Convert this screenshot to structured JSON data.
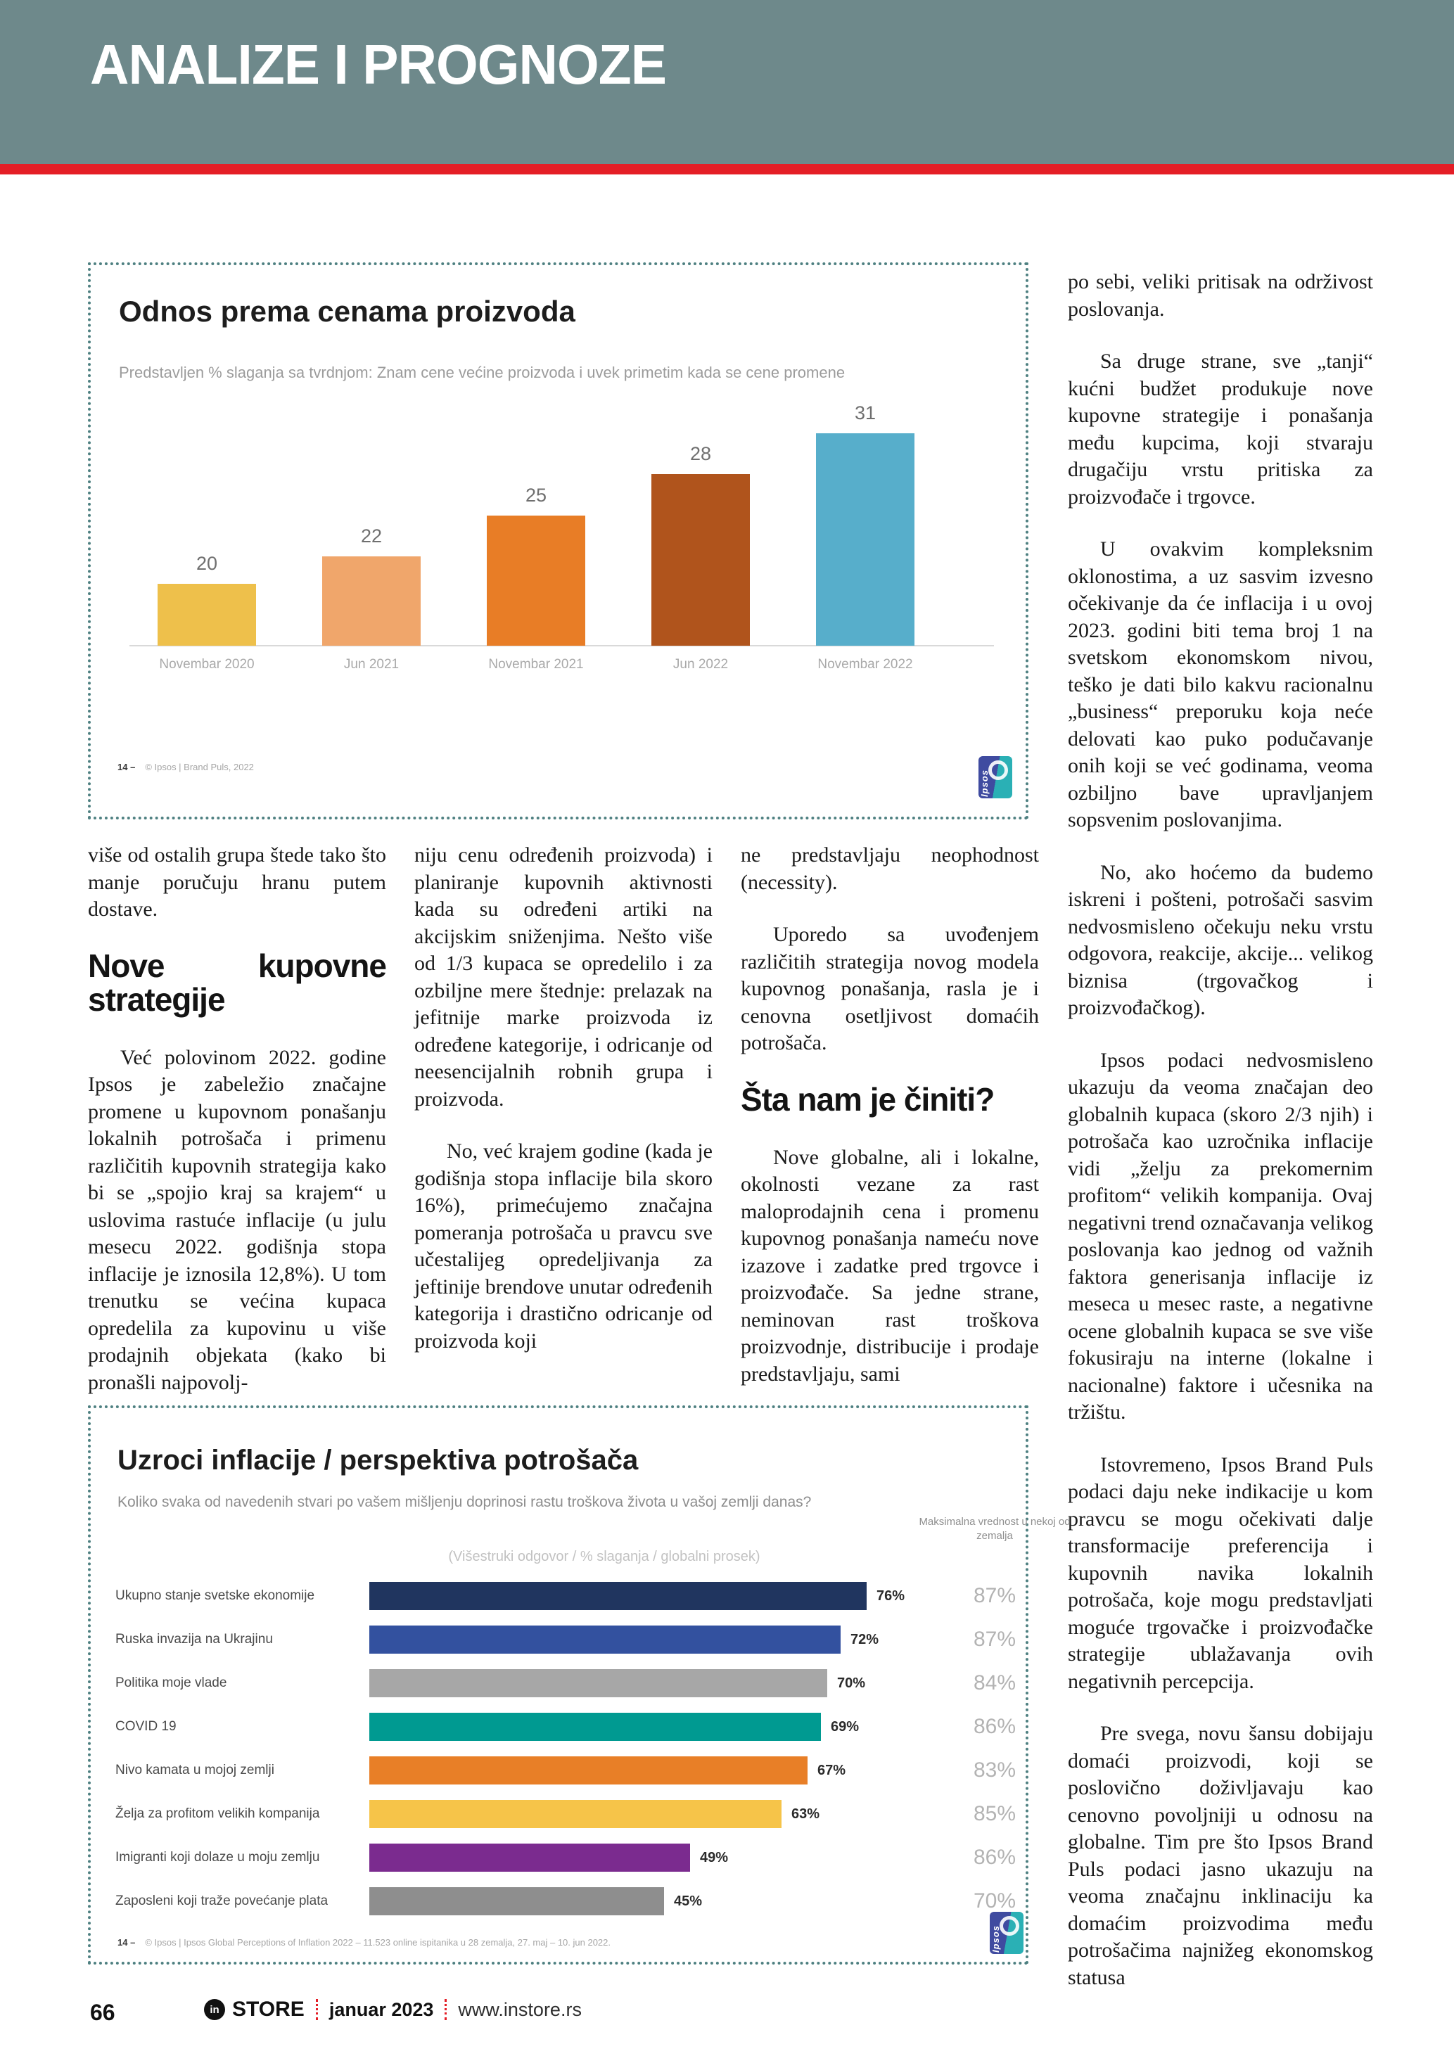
{
  "header": {
    "title": "ANALIZE I PROGNOZE"
  },
  "footer": {
    "page_number": "66",
    "logo_letters": "in",
    "brand": "STORE",
    "date": "januar 2023",
    "site": "www.instore.rs"
  },
  "chart_data": [
    {
      "id": "price-attitude",
      "type": "bar",
      "title": "Odnos prema cenama proizvoda",
      "subtitle": "Predstavljen % slaganja sa tvrdnjom: Znam cene većine proizvoda i uvek primetim kada se cene promene",
      "categories": [
        "Novembar 2020",
        "Jun 2021",
        "Novembar 2021",
        "Jun 2022",
        "Novembar 2022"
      ],
      "values": [
        20,
        22,
        25,
        28,
        31
      ],
      "bar_colors": [
        "#eec04b",
        "#f0a66b",
        "#e87d26",
        "#b0541c",
        "#57aecb"
      ],
      "ylim": [
        15.5,
        31
      ],
      "grid": false,
      "legend": "none",
      "xlabel": "",
      "ylabel": "",
      "footnote_num": "14 –",
      "footnote": "© Ipsos | Brand Puls, 2022",
      "logo_text": "Ipsos"
    },
    {
      "id": "inflation-causes",
      "type": "bar-horizontal",
      "title": "Uzroci inflacije / perspektiva potrošača",
      "subtitle": "Koliko svaka od navedenih stvari po vašem mišljenju doprinosi rastu troškova života u vašoj zemlji danas?",
      "note": "(Višestruki odgovor / % slaganja / globalni prosek)",
      "max_header": "Maksimalna vrednost u nekoj od zemalja",
      "categories": [
        "Ukupno stanje svetske ekonomije",
        "Ruska invazija na Ukrajinu",
        "Politika moje vlade",
        "COVID 19",
        "Nivo kamata u mojoj zemlji",
        "Želja za profitom velikih kompanija",
        "Imigranti koji dolaze u moju zemlju",
        "Zaposleni koji traže povećanje plata"
      ],
      "values": [
        76,
        72,
        70,
        69,
        67,
        63,
        49,
        45
      ],
      "value_labels": [
        "76%",
        "72%",
        "70%",
        "69%",
        "67%",
        "63%",
        "49%",
        "45%"
      ],
      "max_values": [
        "87%",
        "87%",
        "84%",
        "86%",
        "83%",
        "85%",
        "86%",
        "70%"
      ],
      "bar_colors": [
        "#20355f",
        "#33519f",
        "#a7a7a7",
        "#009a91",
        "#e87f27",
        "#f6c449",
        "#7b2b8f",
        "#8e8e8e"
      ],
      "xlim": [
        0,
        100
      ],
      "grid": false,
      "legend": "none",
      "footnote_num": "14 –",
      "footnote": "© Ipsos | Ipsos Global Perceptions of Inflation 2022 – 11.523 online ispitanika u 28 zemalja, 27. maj – 10. jun 2022.",
      "logo_text": "Ipsos"
    }
  ],
  "article": {
    "columns": [
      {
        "blocks": [
          {
            "type": "p",
            "text": "više od ostalih grupa štede tako što manje poručuju hranu putem dostave."
          },
          {
            "type": "h2",
            "text": "Nove kupovne strategije"
          },
          {
            "type": "p",
            "text": "Već polovinom 2022. godine Ipsos je zabeležio značajne promene u kupovnom ponašanju lokalnih potrošača i primenu različitih kupovnih strategija kako bi se „spojio kraj sa krajem“ u uslovima rastuće inflacije (u julu mesecu 2022. godišnja stopa inflacije je iznosila 12,8%). U tom trenutku se većina kupaca opredelila za kupovinu u više prodajnih objekata (kako bi pronašli najpovolj-"
          }
        ]
      },
      {
        "blocks": [
          {
            "type": "p",
            "text": "niju cenu određenih proizvoda) i planiranje kupovnih aktivnosti kada su određeni artiki na akcijskim sniženjima. Nešto više od 1/3 kupaca se opredelilo i za ozbiljne mere štednje: prelazak na jefitnije marke proizvoda iz određene kategorije, i odricanje od neesencijalnih robnih grupa i proizvoda."
          },
          {
            "type": "p",
            "text": "No, već krajem godine (kada je godišnja stopa inflacije bila skoro 16%), primećujemo značajna pomeranja potrošača u pravcu sve učestalijeg opredeljivanja za jeftinije brendove unutar određenih kategorija i drastično odricanje od proizvoda koji"
          }
        ]
      },
      {
        "blocks": [
          {
            "type": "p",
            "text": "ne predstavljaju neophodnost (necessity)."
          },
          {
            "type": "p",
            "text": "Uporedo sa uvođenjem različitih strategija novog modela kupovnog ponašanja, rasla je i cenovna osetljivost domaćih potrošača."
          },
          {
            "type": "h2",
            "text": "Šta nam je činiti?"
          },
          {
            "type": "p",
            "text": "Nove globalne, ali i lokalne, okolnosti vezane za rast maloprodajnih cena i promenu kupovnog ponašanja nameću nove izazove i zadatke pred trgovce i proizvođače. Sa jedne strane, neminovan rast troškova proizvodnje, distribucije i prodaje predstavljaju, sami"
          }
        ]
      }
    ],
    "sidebar_paragraphs": [
      "po sebi, veliki pritisak na održivost poslovanja.",
      "Sa druge strane, sve „tanji“ kućni budžet produkuje nove kupovne strategije i ponašanja među kupcima, koji stvaraju drugačiju vrstu pritiska za proizvođače i trgovce.",
      "U ovakvim kompleksnim oklonostima, a uz sasvim izvesno očekivanje da će inflacija i u ovoj 2023. godini biti tema broj 1 na svetskom ekonomskom nivou, teško je dati bilo kakvu racionalnu „business“ preporuku koja neće delovati kao puko podučavanje onih koji se već godinama, veoma ozbiljno bave upravljanjem sopsvenim poslovanjima.",
      "No, ako hoćemo da budemo iskreni i pošteni, potrošači sasvim nedvosmisleno očekuju neku vrstu odgovora, reakcije, akcije... velikog biznisa (trgovačkog i proizvođačkog).",
      "Ipsos podaci nedvosmisleno ukazuju da veoma značajan deo globalnih kupaca (skoro 2/3 njih) i potrošača kao uzročnika inflacije vidi „želju za prekomernim profitom“ velikih kompanija. Ovaj negativni trend označavanja velikog poslovanja kao jednog od važnih faktora generisanja inflacije iz meseca u mesec raste, a negativne ocene globalnih kupaca se sve više fokusiraju na interne (lokalne i nacionalne) faktore i učesnika na tržištu.",
      "Istovremeno, Ipsos Brand Puls podaci daju neke indikacije u kom pravcu se mogu očekivati dalje transformacije preferencija i kupovnih navika lokalnih potrošača, koje mogu predstavljati moguće trgovačke i proizvođačke strategije ublažavanja ovih negativnih percepcija.",
      "Pre svega, novu šansu dobijaju domaći proizvodi, koji se poslovično doživljavaju kao cenovno povoljniji u odnosu na globalne. Tim pre što Ipsos Brand Puls podaci jasno ukazuju na veoma značajnu inklinaciju ka domaćim proizvodima među potrošačima najnižeg ekonomskog statusa"
    ]
  }
}
